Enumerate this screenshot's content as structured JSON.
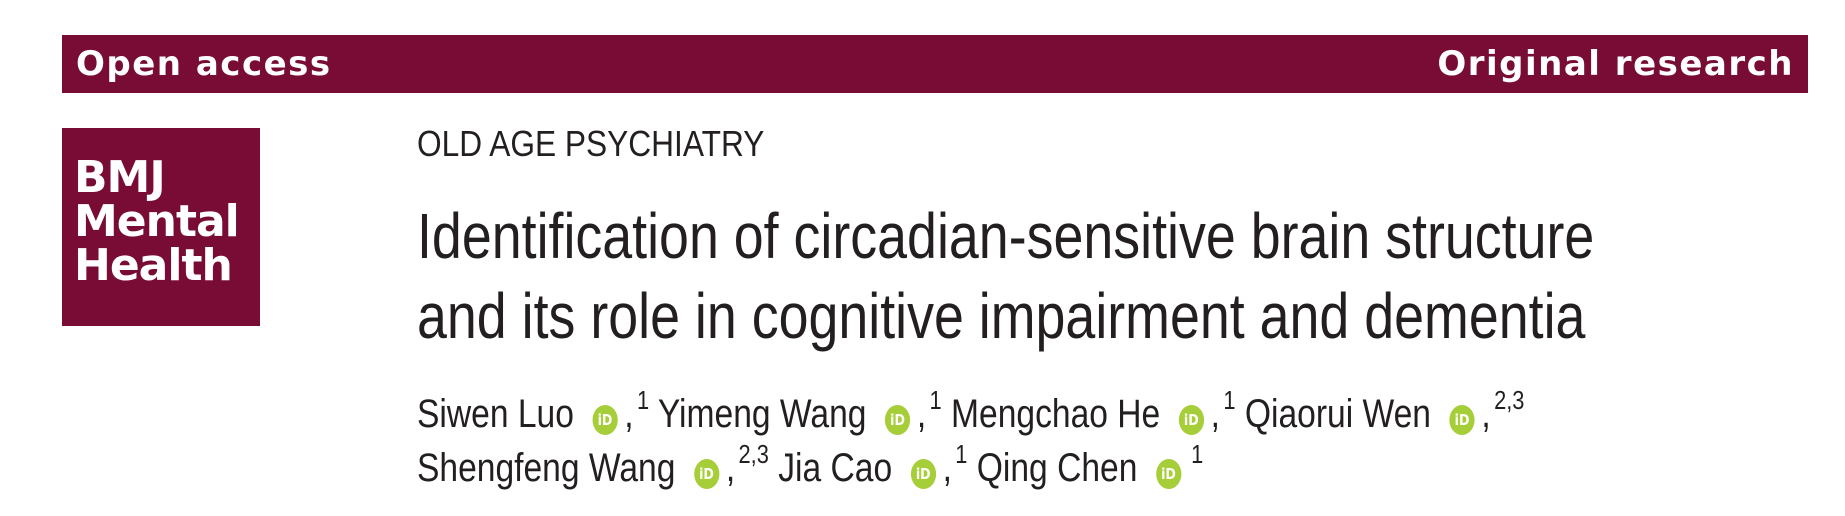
{
  "header": {
    "left_label": "Open access",
    "right_label": "Original research",
    "bar_color": "#780c35"
  },
  "logo": {
    "line1": "BMJ",
    "line2": "Mental",
    "line3": "Health"
  },
  "section": "OLD AGE PSYCHIATRY",
  "title": {
    "line1": "Identification of circadian-sensitive brain structure",
    "line2": "and its role in cognitive impairment and dementia"
  },
  "orcid_icon": "orcid-icon",
  "orcid_color": "#a6ce39",
  "orcid_text": "iD",
  "authors": [
    {
      "name": "Siwen Luo",
      "affil": "1"
    },
    {
      "name": "Yimeng Wang",
      "affil": "1"
    },
    {
      "name": "Mengchao He",
      "affil": "1"
    },
    {
      "name": "Qiaorui Wen",
      "affil": "2,3"
    },
    {
      "name": "Shengfeng Wang",
      "affil": "2,3"
    },
    {
      "name": "Jia Cao",
      "affil": "1"
    },
    {
      "name": "Qing Chen",
      "affil": "1"
    }
  ],
  "separator": ","
}
